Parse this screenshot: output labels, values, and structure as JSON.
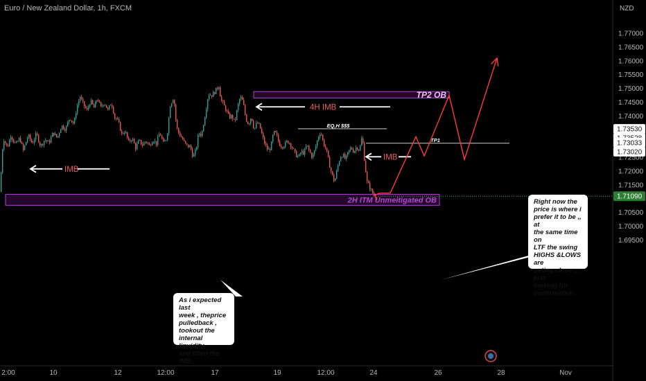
{
  "header": {
    "title": "Euro / New Zealand Dollar, 1h, FXCM"
  },
  "axis": {
    "currency": "NZD"
  },
  "colors": {
    "background": "#000000",
    "bull": "#26a69a",
    "bear": "#ef5350",
    "zone_border": "#b040d0",
    "zone_fill": "#2a0a33",
    "annotation_red": "#e86060",
    "projection": "#ff3b3b",
    "price_line": "#4caf50"
  },
  "chart_data": {
    "type": "candlestick",
    "symbol": "EURNZD",
    "timeframe": "1h",
    "ylim": [
      1.6925,
      1.781
    ],
    "y_ticks": [
      "1.77000",
      "1.76500",
      "1.76000",
      "1.75500",
      "1.75000",
      "1.74500",
      "1.74000",
      "1.72500",
      "1.72000",
      "1.71500",
      "1.70500",
      "1.70000",
      "1.69500"
    ],
    "x_ticks": [
      "2:00",
      "10",
      "12",
      "12:00",
      "17",
      "19",
      "12:00",
      "24",
      "26",
      "28",
      "Nov"
    ],
    "price_labels": [
      {
        "text": "1.73530",
        "value": 1.7353,
        "style": "light"
      },
      {
        "text": "1.73528",
        "value": 1.73528,
        "style": "light",
        "offset": 13
      },
      {
        "text": "1.73033",
        "value": 1.73033,
        "style": "light"
      },
      {
        "text": "1.73020",
        "value": 1.7302,
        "style": "light",
        "offset": 13
      },
      {
        "text": "1.71090",
        "value": 1.7109,
        "style": "current"
      }
    ],
    "close_path": [
      [
        0,
        1.7124
      ],
      [
        2,
        1.7265
      ],
      [
        5,
        1.7315
      ],
      [
        10,
        1.7285
      ],
      [
        15,
        1.733
      ],
      [
        22,
        1.7295
      ],
      [
        28,
        1.732
      ],
      [
        33,
        1.7275
      ],
      [
        40,
        1.733
      ],
      [
        46,
        1.73
      ],
      [
        52,
        1.7335
      ],
      [
        58,
        1.729
      ],
      [
        64,
        1.7315
      ],
      [
        70,
        1.7302
      ],
      [
        76,
        1.734
      ],
      [
        82,
        1.732
      ],
      [
        88,
        1.7365
      ],
      [
        94,
        1.7352
      ],
      [
        100,
        1.7395
      ],
      [
        106,
        1.737
      ],
      [
        110,
        1.743
      ],
      [
        115,
        1.747
      ],
      [
        120,
        1.744
      ],
      [
        125,
        1.742
      ],
      [
        130,
        1.7455
      ],
      [
        135,
        1.743
      ],
      [
        140,
        1.7465
      ],
      [
        145,
        1.743
      ],
      [
        150,
        1.745
      ],
      [
        155,
        1.742
      ],
      [
        160,
        1.745
      ],
      [
        165,
        1.7395
      ],
      [
        170,
        1.738
      ],
      [
        175,
        1.7335
      ],
      [
        180,
        1.7345
      ],
      [
        185,
        1.7305
      ],
      [
        190,
        1.732
      ],
      [
        195,
        1.7285
      ],
      [
        200,
        1.731
      ],
      [
        205,
        1.7295
      ],
      [
        210,
        1.731
      ],
      [
        215,
        1.7292
      ],
      [
        220,
        1.7315
      ],
      [
        225,
        1.73
      ],
      [
        230,
        1.734
      ],
      [
        235,
        1.73
      ],
      [
        240,
        1.732
      ],
      [
        245,
        1.744
      ],
      [
        250,
        1.747
      ],
      [
        254,
        1.736
      ],
      [
        258,
        1.7335
      ],
      [
        262,
        1.732
      ],
      [
        266,
        1.73
      ],
      [
        270,
        1.729
      ],
      [
        274,
        1.729
      ],
      [
        278,
        1.725
      ],
      [
        282,
        1.7275
      ],
      [
        286,
        1.734
      ],
      [
        290,
        1.733
      ],
      [
        295,
        1.74
      ],
      [
        300,
        1.748
      ],
      [
        305,
        1.7475
      ],
      [
        310,
        1.749
      ],
      [
        315,
        1.751
      ],
      [
        318,
        1.746
      ],
      [
        322,
        1.744
      ],
      [
        326,
        1.742
      ],
      [
        330,
        1.7395
      ],
      [
        334,
        1.74
      ],
      [
        338,
        1.7375
      ],
      [
        342,
        1.743
      ],
      [
        346,
        1.747
      ],
      [
        350,
        1.745
      ],
      [
        354,
        1.739
      ],
      [
        358,
        1.737
      ],
      [
        362,
        1.74
      ],
      [
        366,
        1.735
      ],
      [
        370,
        1.7375
      ],
      [
        374,
        1.7365
      ],
      [
        378,
        1.7325
      ],
      [
        382,
        1.7295
      ],
      [
        386,
        1.7275
      ],
      [
        390,
        1.7285
      ],
      [
        394,
        1.734
      ],
      [
        398,
        1.7335
      ],
      [
        402,
        1.73
      ],
      [
        406,
        1.729
      ],
      [
        410,
        1.7295
      ],
      [
        414,
        1.731
      ],
      [
        418,
        1.73
      ],
      [
        422,
        1.728
      ],
      [
        426,
        1.726
      ],
      [
        430,
        1.725
      ],
      [
        434,
        1.727
      ],
      [
        438,
        1.7265
      ],
      [
        442,
        1.7295
      ],
      [
        446,
        1.727
      ],
      [
        450,
        1.725
      ],
      [
        454,
        1.728
      ],
      [
        458,
        1.732
      ],
      [
        462,
        1.7345
      ],
      [
        466,
        1.73
      ],
      [
        470,
        1.728
      ],
      [
        474,
        1.723
      ],
      [
        478,
        1.719
      ],
      [
        482,
        1.716
      ],
      [
        486,
        1.721
      ],
      [
        490,
        1.725
      ],
      [
        494,
        1.726
      ],
      [
        498,
        1.724
      ],
      [
        502,
        1.727
      ],
      [
        506,
        1.7285
      ],
      [
        510,
        1.727
      ],
      [
        514,
        1.729
      ],
      [
        518,
        1.7275
      ],
      [
        522,
        1.733
      ],
      [
        524,
        1.727
      ],
      [
        526,
        1.722
      ],
      [
        529,
        1.716
      ],
      [
        533,
        1.714
      ],
      [
        537,
        1.712
      ],
      [
        540,
        1.711
      ],
      [
        543,
        1.7109
      ]
    ],
    "zones": [
      {
        "label": "TP2 OB",
        "x0": 366,
        "x1": 648,
        "y_top": 1.74885,
        "y_bot": 1.7465,
        "label_color": "#e3c6ee"
      },
      {
        "label": "2H ITM Unmeitigated OB",
        "x0": 8,
        "x1": 634,
        "y_top": 1.7116,
        "y_bot": 1.7076,
        "label_color": "#b048d0"
      }
    ],
    "levels": [
      {
        "label": "EQ,H $$$",
        "x0": 430,
        "x1": 558,
        "value": 1.73535
      },
      {
        "label": "TP1",
        "x0": 528,
        "x1": 735,
        "value": 1.7301
      }
    ],
    "imb_annotations": [
      {
        "label": "IMB",
        "arrow_x0": 44,
        "arrow_x1": 90,
        "text_x": 93,
        "line_x0": 112,
        "line_x1": 158,
        "value": 1.7208
      },
      {
        "label": "4H IMB",
        "arrow_x0": 370,
        "arrow_x1": 440,
        "text_x": 447,
        "line_x0": 490,
        "line_x1": 563,
        "value": 1.7433
      },
      {
        "label": "IMB",
        "arrow_x0": 528,
        "arrow_x1": 550,
        "text_x": 553,
        "line_x0": 575,
        "line_x1": 593,
        "value": 1.7252
      }
    ],
    "projection_path": [
      [
        540,
        1.7112
      ],
      [
        548,
        1.712
      ],
      [
        563,
        1.712
      ],
      [
        600,
        1.7325
      ],
      [
        612,
        1.7255
      ],
      [
        648,
        1.7475
      ],
      [
        670,
        1.7242
      ],
      [
        717,
        1.761
      ]
    ],
    "callout_lines": [
      {
        "from": [
          340,
          428
        ],
        "to": [
          318,
          404
        ]
      },
      {
        "from": [
          766,
          368
        ],
        "to": [
          636,
          404
        ]
      }
    ]
  },
  "notes": {
    "left": [
      "As i expected last",
      "week , theprice",
      "pulledback ,",
      "tookout the",
      "internal liquidity ,",
      "and filled the IMB ."
    ],
    "right": [
      "Right now the",
      "price is where i",
      "prefer it to be ,, at",
      "the same time on",
      "LTF the swing",
      "HIGHS &LOWS are",
      "geting close ,,, just",
      "looking for",
      "confirmation ."
    ]
  }
}
